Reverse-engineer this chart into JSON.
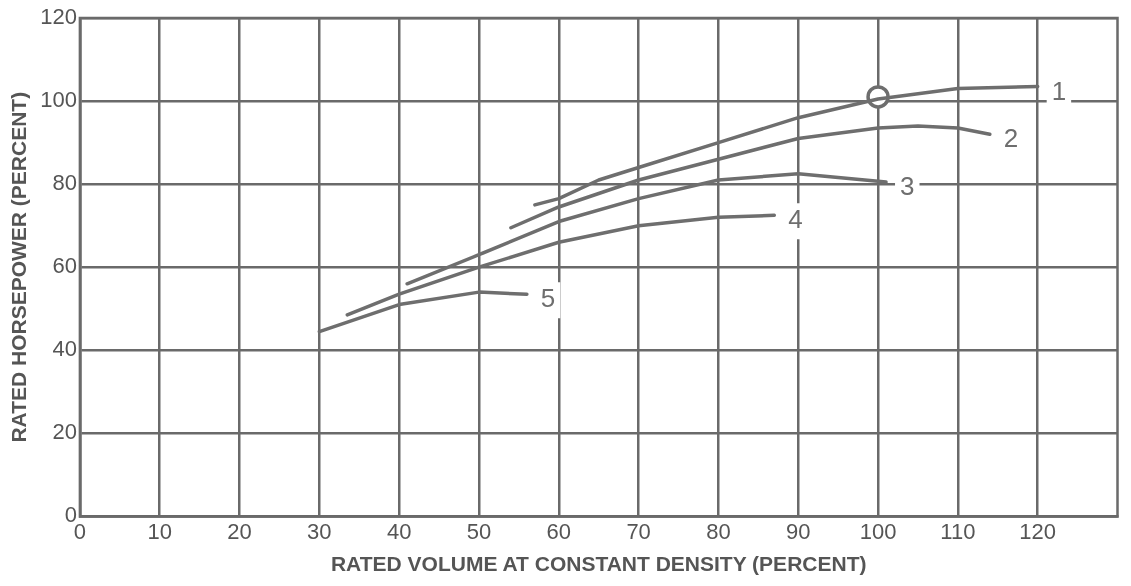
{
  "chart_data": {
    "type": "line",
    "xlabel": "RATED VOLUME AT CONSTANT DENSITY (PERCENT)",
    "ylabel": "RATED HORSEPOWER (PERCENT)",
    "xlim": [
      0,
      130
    ],
    "xticks": [
      0,
      10,
      20,
      30,
      40,
      50,
      60,
      70,
      80,
      90,
      100,
      110,
      120
    ],
    "ylim": [
      0,
      120
    ],
    "yticks": [
      0,
      20,
      40,
      60,
      80,
      100,
      120
    ],
    "grid": true,
    "legend": false,
    "marker": "none",
    "line_style": "solid",
    "series": [
      {
        "name": "1",
        "color": "#6e6e6e",
        "x": [
          57,
          60,
          65,
          70,
          80,
          90,
          100,
          110,
          120
        ],
        "values": [
          75,
          76.5,
          81,
          84,
          90,
          96,
          100.5,
          103,
          103.5
        ]
      },
      {
        "name": "2",
        "color": "#6e6e6e",
        "x": [
          54,
          60,
          70,
          80,
          90,
          100,
          105,
          110,
          114
        ],
        "values": [
          69.5,
          74.5,
          81,
          86,
          91,
          93.5,
          94,
          93.5,
          92
        ]
      },
      {
        "name": "3",
        "color": "#6e6e6e",
        "x": [
          41,
          50,
          60,
          70,
          80,
          90,
          101
        ],
        "values": [
          56,
          63,
          71,
          76.5,
          81,
          82.5,
          80.5
        ]
      },
      {
        "name": "4",
        "color": "#6e6e6e",
        "x": [
          33.5,
          40,
          50,
          60,
          70,
          80,
          87
        ],
        "values": [
          48.5,
          53.5,
          60,
          66,
          70,
          72,
          72.5
        ]
      },
      {
        "name": "5",
        "color": "#6e6e6e",
        "x": [
          30,
          40,
          50,
          56
        ],
        "values": [
          44.5,
          51,
          54,
          53.5
        ]
      },
      {
        "type": "scatter",
        "color": "#6e6e6e",
        "marker": "circle",
        "x": [
          100
        ],
        "values": [
          101
        ]
      }
    ]
  }
}
